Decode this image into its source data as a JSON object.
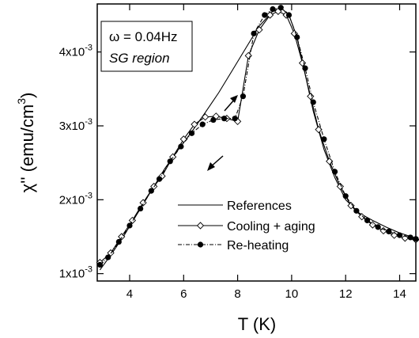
{
  "chart_data": {
    "type": "line",
    "xlabel": "T (K)",
    "ylabel": "χ'' (emu/cm",
    "ylabel_sup": "3",
    "ylabel_close": ")",
    "xlim": [
      2.8,
      14.6
    ],
    "ylim": [
      0.0009,
      0.00465
    ],
    "x_ticks": [
      {
        "value": 4,
        "label": "4"
      },
      {
        "value": 6,
        "label": "6"
      },
      {
        "value": 8,
        "label": "8"
      },
      {
        "value": 10,
        "label": "10"
      },
      {
        "value": 12,
        "label": "12"
      },
      {
        "value": 14,
        "label": "14"
      }
    ],
    "y_ticks": [
      {
        "value": 0.001,
        "base": "1x10",
        "exp": "-3"
      },
      {
        "value": 0.002,
        "base": "2x10",
        "exp": "-3"
      },
      {
        "value": 0.003,
        "base": "3x10",
        "exp": "-3"
      },
      {
        "value": 0.004,
        "base": "4x10",
        "exp": "-3"
      }
    ],
    "annotations": {
      "frequency": "ω = 0.04Hz",
      "region": "SG region"
    },
    "series": [
      {
        "name": "References",
        "style": "solid",
        "marker": "none",
        "x": [
          2.9,
          3.3,
          3.8,
          4.3,
          4.8,
          5.3,
          5.8,
          6.3,
          6.8,
          7.3,
          7.8,
          8.3,
          8.8,
          9.3,
          9.6,
          9.9,
          10.2,
          10.5,
          10.8,
          11.2,
          11.6,
          12.0,
          12.5,
          13.0,
          13.5,
          14.0,
          14.6
        ],
        "y": [
          0.00105,
          0.00125,
          0.00152,
          0.00182,
          0.00212,
          0.00242,
          0.00268,
          0.00292,
          0.00318,
          0.00345,
          0.00375,
          0.00405,
          0.00435,
          0.00455,
          0.0046,
          0.0045,
          0.0042,
          0.0037,
          0.0032,
          0.00268,
          0.0023,
          0.002,
          0.00182,
          0.00172,
          0.00163,
          0.00155,
          0.00148
        ]
      },
      {
        "name": "Cooling + aging",
        "style": "solid",
        "marker": "diamond",
        "x": [
          2.9,
          3.3,
          3.7,
          4.1,
          4.5,
          4.9,
          5.2,
          5.6,
          6.0,
          6.4,
          6.8,
          7.2,
          7.6,
          8.0,
          8.4,
          8.8,
          9.2,
          9.5,
          9.8,
          10.1,
          10.4,
          10.7,
          11.0,
          11.4,
          11.8,
          12.2,
          12.6,
          13.0,
          13.4,
          13.8,
          14.2,
          14.6
        ],
        "y": [
          0.00115,
          0.00128,
          0.0015,
          0.00172,
          0.00196,
          0.00218,
          0.00232,
          0.00258,
          0.00282,
          0.00302,
          0.00312,
          0.00313,
          0.0031,
          0.00306,
          0.00395,
          0.0043,
          0.0045,
          0.00455,
          0.0045,
          0.00425,
          0.00385,
          0.0034,
          0.00295,
          0.00252,
          0.00218,
          0.00192,
          0.00177,
          0.00166,
          0.00158,
          0.00152,
          0.00148,
          0.00146
        ]
      },
      {
        "name": "Re-heating",
        "style": "dash-dot",
        "marker": "circle",
        "x": [
          2.9,
          3.2,
          3.6,
          4.0,
          4.4,
          4.8,
          5.1,
          5.5,
          5.9,
          6.3,
          6.7,
          7.1,
          7.5,
          7.9,
          8.2,
          8.6,
          9.0,
          9.3,
          9.6,
          9.9,
          10.2,
          10.5,
          10.8,
          11.2,
          11.6,
          12.0,
          12.4,
          12.8,
          13.2,
          13.6,
          14.0,
          14.4,
          14.6
        ],
        "y": [
          0.00112,
          0.00122,
          0.00143,
          0.00165,
          0.00188,
          0.00212,
          0.00228,
          0.00252,
          0.00272,
          0.0029,
          0.00302,
          0.00308,
          0.0031,
          0.0031,
          0.0034,
          0.00425,
          0.0045,
          0.00458,
          0.0046,
          0.0045,
          0.0042,
          0.00378,
          0.00332,
          0.00282,
          0.00238,
          0.00205,
          0.00185,
          0.00172,
          0.00163,
          0.00157,
          0.00152,
          0.00149,
          0.00147
        ]
      }
    ],
    "legend_position": "lower-center"
  }
}
